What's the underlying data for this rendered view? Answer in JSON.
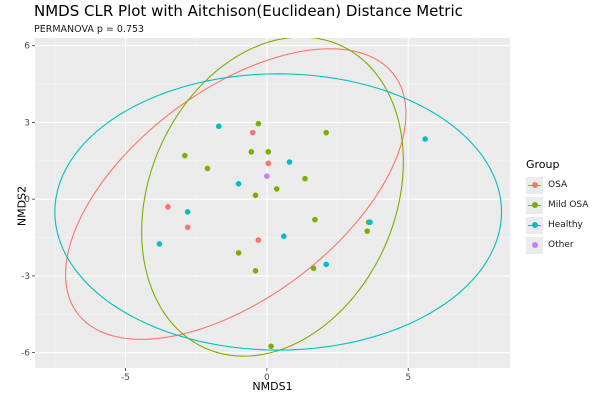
{
  "chart_data": {
    "type": "scatter",
    "title": "NMDS CLR Plot with Aitchison(Euclidean) Distance Metric",
    "subtitle": "PERMANOVA p = 0.753",
    "xlabel": "NMDS1",
    "ylabel": "NMDS2",
    "xlim": [
      -8.2,
      8.6
    ],
    "ylim": [
      -6.6,
      6.3
    ],
    "xticks": [
      -5,
      0,
      5
    ],
    "yticks": [
      -6,
      -3,
      0,
      3,
      6
    ],
    "grid": true,
    "legend": {
      "title": "Group",
      "placement": "right"
    },
    "series": [
      {
        "name": "OSA",
        "color": "#F8766D",
        "points": [
          [
            -0.5,
            2.6
          ],
          [
            0.05,
            1.4
          ],
          [
            -3.5,
            -0.3
          ],
          [
            -2.8,
            -1.1
          ],
          [
            -0.3,
            -1.6
          ]
        ],
        "ellipse": {
          "cx": -1.1,
          "cy": 0.2,
          "rx": 7.3,
          "ry": 3.9,
          "angle_deg": 42
        }
      },
      {
        "name": "Mild OSA",
        "color": "#7CAE00",
        "points": [
          [
            -0.3,
            2.95
          ],
          [
            2.1,
            2.6
          ],
          [
            -2.9,
            1.7
          ],
          [
            -0.55,
            1.85
          ],
          [
            0.05,
            1.85
          ],
          [
            -2.1,
            1.2
          ],
          [
            1.35,
            0.8
          ],
          [
            0.35,
            0.4
          ],
          [
            -0.4,
            0.15
          ],
          [
            1.7,
            -0.8
          ],
          [
            3.6,
            -0.9
          ],
          [
            3.55,
            -1.25
          ],
          [
            -1.0,
            -2.1
          ],
          [
            -0.4,
            -2.8
          ],
          [
            1.65,
            -2.7
          ],
          [
            0.15,
            -5.75
          ]
        ],
        "ellipse": {
          "cx": 0.2,
          "cy": 0.1,
          "rx": 6.4,
          "ry": 4.4,
          "angle_deg": 72
        }
      },
      {
        "name": "Healthy",
        "color": "#00BFC4",
        "points": [
          [
            -1.7,
            2.85
          ],
          [
            5.6,
            2.35
          ],
          [
            0.8,
            1.45
          ],
          [
            -1.0,
            0.6
          ],
          [
            -2.8,
            -0.5
          ],
          [
            3.65,
            -0.9
          ],
          [
            0.6,
            -1.45
          ],
          [
            -3.8,
            -1.75
          ],
          [
            2.1,
            -2.55
          ]
        ],
        "ellipse": {
          "cx": 0.4,
          "cy": -0.5,
          "rx": 7.9,
          "ry": 5.4,
          "angle_deg": 0
        }
      },
      {
        "name": "Other",
        "color": "#C77CFF",
        "points": [
          [
            0.0,
            0.9
          ]
        ]
      }
    ]
  }
}
